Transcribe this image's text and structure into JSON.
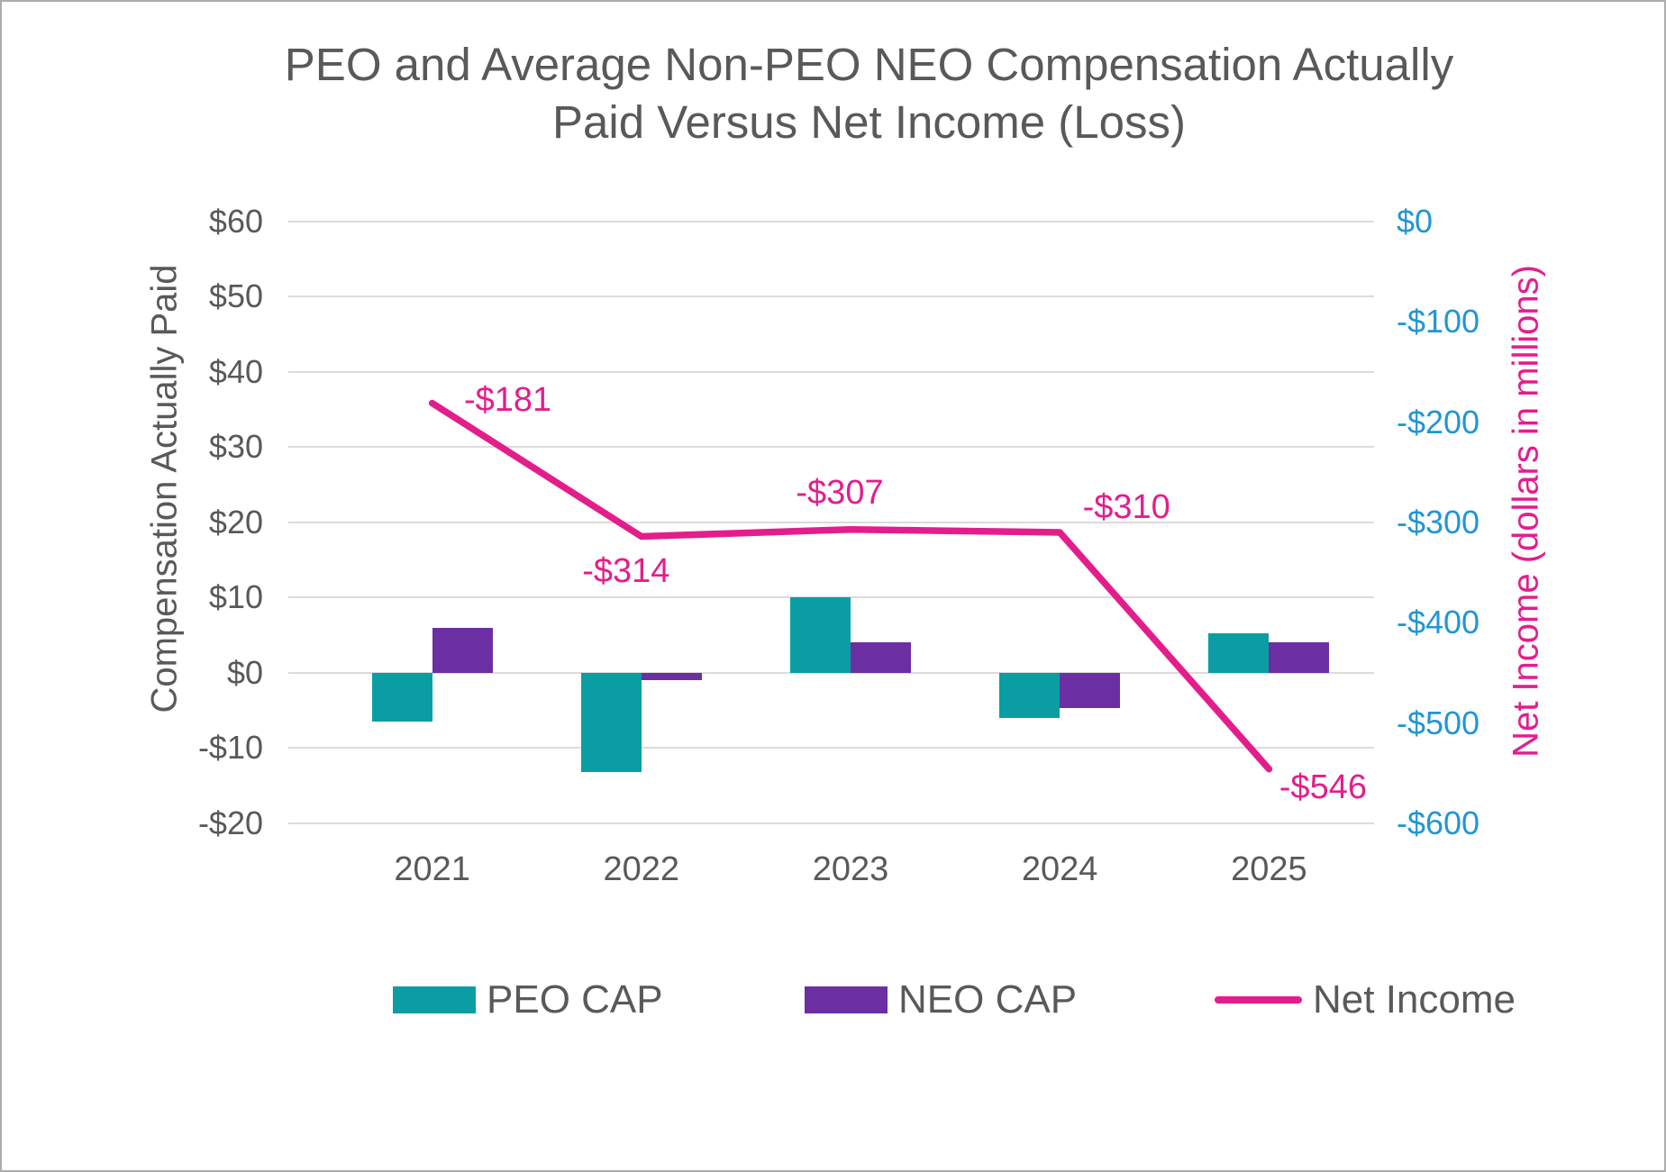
{
  "title": "PEO and Average Non-PEO NEO Compensation Actually Paid Versus Net Income (Loss)",
  "title_lines": [
    "PEO and Average Non-PEO NEO Compensation Actually",
    "Paid Versus Net Income (Loss)"
  ],
  "chart_data": {
    "type": "bar",
    "subtype": "combo-bar-line-dual-axis",
    "categories": [
      "2021",
      "2022",
      "2023",
      "2024",
      "2025"
    ],
    "bar_series": [
      {
        "name": "PEO CAP",
        "color": "#0A9EA4",
        "values": [
          -6.5,
          -13.2,
          10,
          -6,
          5.3
        ]
      },
      {
        "name": "NEO CAP",
        "color": "#6B2FA3",
        "values": [
          6,
          -1,
          4,
          -4.7,
          4
        ]
      }
    ],
    "line_series": {
      "name": "Net Income",
      "color": "#E31E8C",
      "axis": "right",
      "values": [
        -181,
        -314,
        -307,
        -310,
        -546
      ],
      "point_labels": [
        "-$181",
        "-$314",
        "-$307",
        "-$310",
        "-$546"
      ]
    },
    "left_axis": {
      "title": "Compensation Actually Paid",
      "ticks": [
        "$60",
        "$50",
        "$40",
        "$30",
        "$20",
        "$10",
        "$0",
        "-$10",
        "-$20"
      ],
      "max": 60,
      "min": -20,
      "step": 10,
      "text_color": "#595959"
    },
    "right_axis": {
      "title": "Net Income (dollars in millions)",
      "ticks": [
        "$0",
        "-$100",
        "-$200",
        "-$300",
        "-$400",
        "-$500",
        "-$600"
      ],
      "max": 0,
      "min": -600,
      "step": 100,
      "tick_color": "#2196D3",
      "title_color": "#E31E8C"
    },
    "grid": true,
    "gridline_color": "#DBDBDB",
    "legend_position": "bottom",
    "legend": [
      {
        "label": "PEO CAP",
        "color": "#0A9EA4",
        "marker": "box"
      },
      {
        "label": "NEO CAP",
        "color": "#6B2FA3",
        "marker": "box"
      },
      {
        "label": "Net Income",
        "color": "#E31E8C",
        "marker": "line"
      }
    ]
  }
}
